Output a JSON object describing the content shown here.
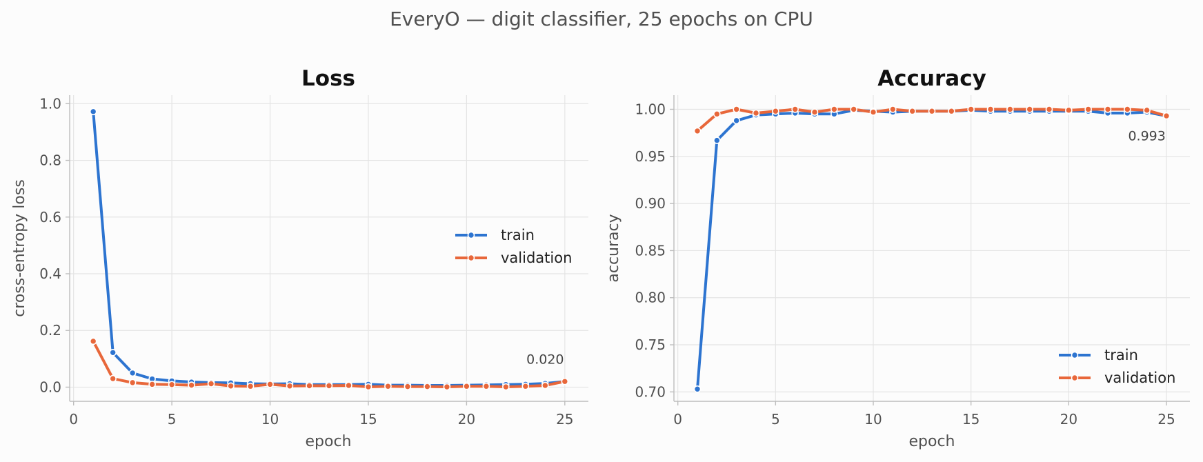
{
  "figure": {
    "suptitle": "EveryO — digit classifier, 25 epochs on CPU"
  },
  "colors": {
    "train": "#2d74d0",
    "validation": "#e8673a"
  },
  "chart_data": [
    {
      "type": "line",
      "title": "Loss",
      "xlabel": "epoch",
      "ylabel": "cross-entropy loss",
      "xlim": [
        -0.2,
        26.2
      ],
      "ylim": [
        -0.05,
        1.03
      ],
      "xticks": [
        0,
        5,
        10,
        15,
        20,
        25
      ],
      "yticks": [
        0.0,
        0.2,
        0.4,
        0.6,
        0.8,
        1.0
      ],
      "ytick_format": 1,
      "grid": true,
      "legend": "center-right",
      "x": [
        1,
        2,
        3,
        4,
        5,
        6,
        7,
        8,
        9,
        10,
        11,
        12,
        13,
        14,
        15,
        16,
        17,
        18,
        19,
        20,
        21,
        22,
        23,
        24,
        25
      ],
      "series": [
        {
          "name": "train",
          "color": "#2d74d0",
          "values": [
            0.972,
            0.122,
            0.05,
            0.029,
            0.022,
            0.018,
            0.016,
            0.015,
            0.012,
            0.011,
            0.012,
            0.009,
            0.009,
            0.009,
            0.01,
            0.007,
            0.007,
            0.006,
            0.006,
            0.007,
            0.008,
            0.009,
            0.01,
            0.013,
            0.02
          ]
        },
        {
          "name": "validation",
          "color": "#e8673a",
          "values": [
            0.162,
            0.03,
            0.016,
            0.01,
            0.009,
            0.007,
            0.012,
            0.004,
            0.003,
            0.01,
            0.004,
            0.005,
            0.005,
            0.006,
            0.001,
            0.003,
            0.002,
            0.002,
            0.001,
            0.003,
            0.003,
            0.001,
            0.003,
            0.006,
            0.02
          ]
        }
      ],
      "annotation": {
        "text": "0.020",
        "x": 24,
        "y": 0.1
      }
    },
    {
      "type": "line",
      "title": "Accuracy",
      "xlabel": "epoch",
      "ylabel": "accuracy",
      "xlim": [
        -0.2,
        26.2
      ],
      "ylim": [
        0.69,
        1.015
      ],
      "xticks": [
        0,
        5,
        10,
        15,
        20,
        25
      ],
      "yticks": [
        0.7,
        0.75,
        0.8,
        0.85,
        0.9,
        0.95,
        1.0
      ],
      "ytick_format": 2,
      "grid": true,
      "legend": "lower-right",
      "x": [
        1,
        2,
        3,
        4,
        5,
        6,
        7,
        8,
        9,
        10,
        11,
        12,
        13,
        14,
        15,
        16,
        17,
        18,
        19,
        20,
        21,
        22,
        23,
        24,
        25
      ],
      "series": [
        {
          "name": "train",
          "color": "#2d74d0",
          "values": [
            0.703,
            0.967,
            0.988,
            0.994,
            0.995,
            0.996,
            0.995,
            0.995,
            0.999,
            0.998,
            0.997,
            0.998,
            0.998,
            0.998,
            0.999,
            0.998,
            0.998,
            0.998,
            0.998,
            0.998,
            0.998,
            0.996,
            0.996,
            0.997,
            0.993
          ]
        },
        {
          "name": "validation",
          "color": "#e8673a",
          "values": [
            0.977,
            0.995,
            1.0,
            0.996,
            0.998,
            1.0,
            0.997,
            1.0,
            1.0,
            0.997,
            1.0,
            0.998,
            0.998,
            0.998,
            1.0,
            1.0,
            1.0,
            1.0,
            1.0,
            0.999,
            1.0,
            1.0,
            1.0,
            0.999,
            0.993
          ]
        }
      ],
      "annotation": {
        "text": "0.993",
        "x": 24,
        "y": 0.972
      }
    }
  ]
}
